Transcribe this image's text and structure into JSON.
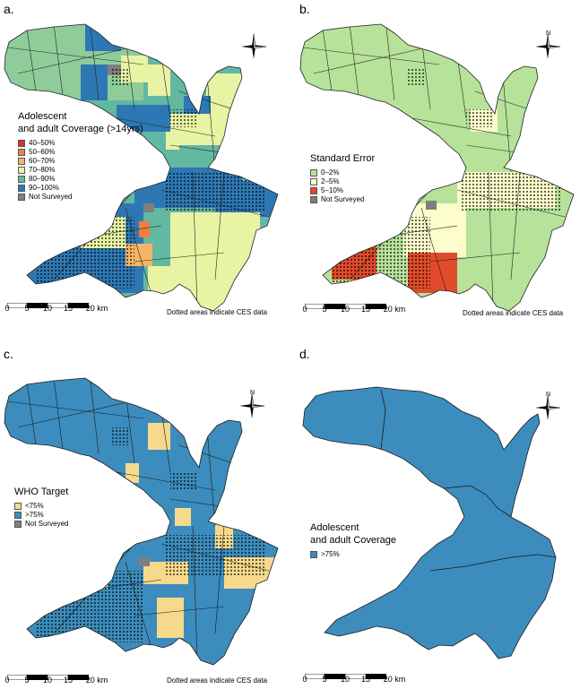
{
  "colors": {
    "c40_50": "#d7302a",
    "c50_60": "#f07f3c",
    "c60_70": "#f6b565",
    "c70_80": "#e9f3a4",
    "c80_90": "#63b8a1",
    "c90_100": "#2d78b4",
    "not_surveyed": "#7f7f7f",
    "se_0_2": "#b7e29a",
    "se_2_5": "#fdfccb",
    "se_5_10": "#e14b2b",
    "who_low": "#f7d98c",
    "who_high": "#3c8dbd",
    "dot": "#000000"
  },
  "north_letter": "N",
  "ces_note": "Dotted areas indicate CES data",
  "scale": {
    "ticks": [
      "0",
      "5",
      "10",
      "15",
      "20 km"
    ]
  },
  "panels": [
    {
      "label": "a.",
      "legend_title_line1": "Adolescent",
      "legend_title_line2": "and adult Coverage (>14yrs)",
      "legend": [
        "40–50%",
        "50–60%",
        "60–70%",
        "70–80%",
        "80–90%",
        "90–100%",
        "Not Surveyed"
      ]
    },
    {
      "label": "b.",
      "legend_title_line1": "Standard Error",
      "legend": [
        "0–2%",
        "2–5%",
        "5–10%",
        "Not Surveyed"
      ]
    },
    {
      "label": "c.",
      "legend_title_line1": "WHO Target",
      "legend": [
        "<75%",
        ">75%",
        "Not Surveyed"
      ]
    },
    {
      "label": "d.",
      "legend_title_line1": "Adolescent",
      "legend_title_line2": "and adult Coverage",
      "legend": [
        ">75%"
      ]
    }
  ]
}
